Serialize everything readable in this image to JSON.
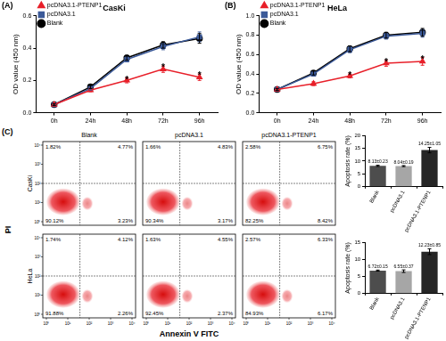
{
  "chart_data": [
    {
      "type": "line",
      "panel": "(A)",
      "title": "CasKi",
      "y_label": "OD value (450 nm)",
      "categories": [
        "0h",
        "24h",
        "48h",
        "72h",
        "96h"
      ],
      "ylim": [
        0,
        0.6
      ],
      "yticks": [
        {
          "value": 0,
          "label": "0.0"
        },
        {
          "value": 0.2,
          "label": "0.2"
        },
        {
          "value": 0.4,
          "label": "0.4"
        },
        {
          "value": 0.6,
          "label": "0.6"
        }
      ],
      "grid": false,
      "legend": "upper left",
      "series": [
        {
          "name": "pcDNA3.1-PTENP1",
          "color": "#e8202a",
          "marker": "triangle",
          "values": [
            0.05,
            0.14,
            0.2,
            0.27,
            0.22
          ],
          "errors": [
            0.005,
            0.01,
            0.015,
            0.02,
            0.02
          ]
        },
        {
          "name": "pcDNA3.1",
          "color": "#3c5a99",
          "marker": "square",
          "values": [
            0.05,
            0.15,
            0.33,
            0.41,
            0.47
          ],
          "errors": [
            0.005,
            0.01,
            0.015,
            0.02,
            0.03
          ]
        },
        {
          "name": "Blank",
          "color": "#000000",
          "marker": "circle",
          "values": [
            0.05,
            0.16,
            0.34,
            0.42,
            0.46
          ],
          "errors": [
            0.005,
            0.01,
            0.015,
            0.02,
            0.03
          ]
        }
      ],
      "annotations": [
        {
          "series": "pcDNA3.1-PTENP1",
          "x": "48h",
          "label": "*"
        },
        {
          "series": "pcDNA3.1-PTENP1",
          "x": "72h",
          "label": "*"
        },
        {
          "series": "pcDNA3.1-PTENP1",
          "x": "96h",
          "label": "*"
        }
      ]
    },
    {
      "type": "line",
      "panel": "(B)",
      "title": "HeLa",
      "y_label": "OD value (450 nm)",
      "categories": [
        "0h",
        "24h",
        "48h",
        "72h",
        "96h"
      ],
      "ylim": [
        0,
        1
      ],
      "yticks": [
        {
          "value": 0,
          "label": "0.0"
        },
        {
          "value": 0.2,
          "label": "0.2"
        },
        {
          "value": 0.4,
          "label": "0.4"
        },
        {
          "value": 0.6,
          "label": "0.6"
        },
        {
          "value": 0.8,
          "label": "0.8"
        },
        {
          "value": 1,
          "label": "1.0"
        }
      ],
      "grid": false,
      "legend": "upper left",
      "series": [
        {
          "name": "pcDNA3.1-PTENP1",
          "color": "#e8202a",
          "marker": "triangle",
          "values": [
            0.24,
            0.3,
            0.38,
            0.51,
            0.53
          ],
          "errors": [
            0.01,
            0.02,
            0.02,
            0.03,
            0.04
          ]
        },
        {
          "name": "pcDNA3.1",
          "color": "#3c5a99",
          "marker": "square",
          "values": [
            0.24,
            0.4,
            0.65,
            0.79,
            0.82
          ],
          "errors": [
            0.01,
            0.02,
            0.03,
            0.03,
            0.04
          ]
        },
        {
          "name": "Blank",
          "color": "#000000",
          "marker": "circle",
          "values": [
            0.24,
            0.41,
            0.66,
            0.8,
            0.83
          ],
          "errors": [
            0.01,
            0.02,
            0.03,
            0.03,
            0.04
          ]
        }
      ],
      "annotations": [
        {
          "series": "pcDNA3.1-PTENP1",
          "x": "48h",
          "label": "*"
        },
        {
          "series": "pcDNA3.1-PTENP1",
          "x": "72h",
          "label": "*"
        },
        {
          "series": "pcDNA3.1-PTENP1",
          "x": "96h",
          "label": "*"
        }
      ]
    },
    {
      "type": "bar",
      "y_label": "Apoptosis rate (%)",
      "categories": [
        "Blank",
        "pcDNA3.1",
        "pcDNA3.1-PTENP1"
      ],
      "values": [
        8.13,
        8.04,
        14.25
      ],
      "errors": [
        0.23,
        0.19,
        1.05
      ],
      "value_labels": [
        "8.13±0.23",
        "8.04±0.19",
        "14.25±1.05"
      ],
      "data_labels": true,
      "colors": [
        "#4d4d4d",
        "#a6a6a6",
        "#262626"
      ],
      "ylim": [
        0,
        20
      ],
      "yticks": [
        0,
        5,
        10,
        15,
        20
      ],
      "grid": false
    },
    {
      "type": "bar",
      "y_label": "Apoptosis rate (%)",
      "categories": [
        "Blank",
        "pcDNA3.1",
        "pcDNA3.1-PTENP1"
      ],
      "values": [
        6.72,
        6.55,
        12.23
      ],
      "errors": [
        0.15,
        0.37,
        0.85
      ],
      "value_labels": [
        "6.72±0.15",
        "6.55±0.37",
        "12.23±0.85"
      ],
      "data_labels": true,
      "colors": [
        "#4d4d4d",
        "#a6a6a6",
        "#262626"
      ],
      "ylim": [
        0,
        15
      ],
      "yticks": [
        0,
        5,
        10,
        15
      ],
      "grid": false
    }
  ],
  "flow_cytometry": {
    "panel": "(C)",
    "x_label": "Annexin V FITC",
    "y_label": "PI",
    "axis_ticks": [
      "10⁰",
      "10¹",
      "10²",
      "10³",
      "10⁴"
    ],
    "columns": [
      "Blank",
      "pcDNA3.1",
      "pcDNA3.1-PTENP1"
    ],
    "rows": [
      {
        "name": "CasKi",
        "plots": [
          {
            "upper_left": "1.82%",
            "upper_right": "4.77%",
            "lower_left": "90.12%",
            "lower_right": "3.23%"
          },
          {
            "upper_left": "1.66%",
            "upper_right": "4.83%",
            "lower_left": "90.34%",
            "lower_right": "3.17%"
          },
          {
            "upper_left": "2.58%",
            "upper_right": "6.75%",
            "lower_left": "82.25%",
            "lower_right": "8.42%"
          }
        ]
      },
      {
        "name": "HeLa",
        "plots": [
          {
            "upper_left": "1.74%",
            "upper_right": "4.12%",
            "lower_left": "91.88%",
            "lower_right": "2.26%"
          },
          {
            "upper_left": "1.63%",
            "upper_right": "4.55%",
            "lower_left": "92.45%",
            "lower_right": "2.37%"
          },
          {
            "upper_left": "2.57%",
            "upper_right": "6.33%",
            "lower_left": "84.93%",
            "lower_right": "6.17%"
          }
        ]
      }
    ]
  }
}
